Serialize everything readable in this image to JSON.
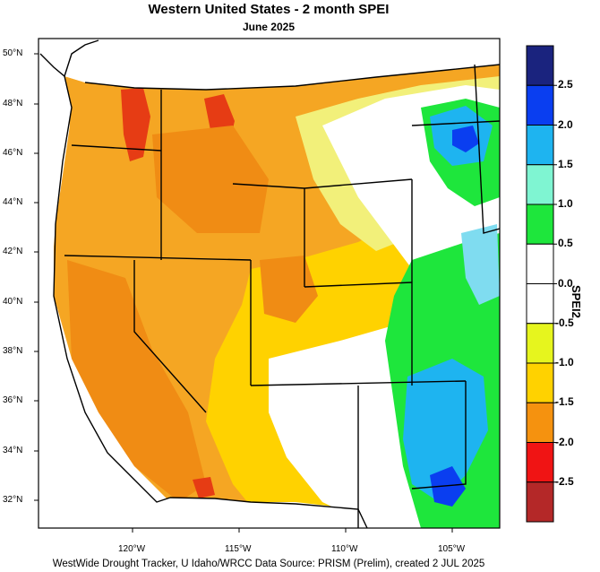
{
  "title": "Western United States - 2 month SPEI",
  "subtitle": "June 2025",
  "credit": "WestWide Drought Tracker, U Idaho/WRCC Data Source: PRISM (Prelim), created  2 JUL 2025",
  "colorbar": {
    "title": "SPEI2",
    "tick_labels": [
      "2.5",
      "2.0",
      "1.5",
      "1.0",
      "0.5",
      "0.0",
      "-0.5",
      "-1.0",
      "-1.5",
      "-2.0",
      "-2.5"
    ],
    "colors": [
      "#1a237e",
      "#0a3ef0",
      "#1eb4f0",
      "#7ff5d2",
      "#1ee63c",
      "#ffffff",
      "#ffffff",
      "#e6f51e",
      "#ffd200",
      "#f5920f",
      "#f01414",
      "#b42828"
    ]
  },
  "axes": {
    "lat_labels": [
      "50°N",
      "48°N",
      "46°N",
      "44°N",
      "42°N",
      "40°N",
      "38°N",
      "36°N",
      "34°N",
      "32°N"
    ],
    "lon_labels": [
      "120°W",
      "115°W",
      "110°W",
      "105°W"
    ]
  },
  "legend_colors": {
    "ocean": "#ffffff",
    "dry_severe": "#e63c14",
    "dry": "#f5920f",
    "moderately_dry": "#ffd200",
    "slightly_dry": "#e6f51e",
    "normal": "#ffffff",
    "wet": "#1ee63c",
    "very_wet": "#1eb4f0",
    "extreme_wet": "#0a3ef0"
  }
}
